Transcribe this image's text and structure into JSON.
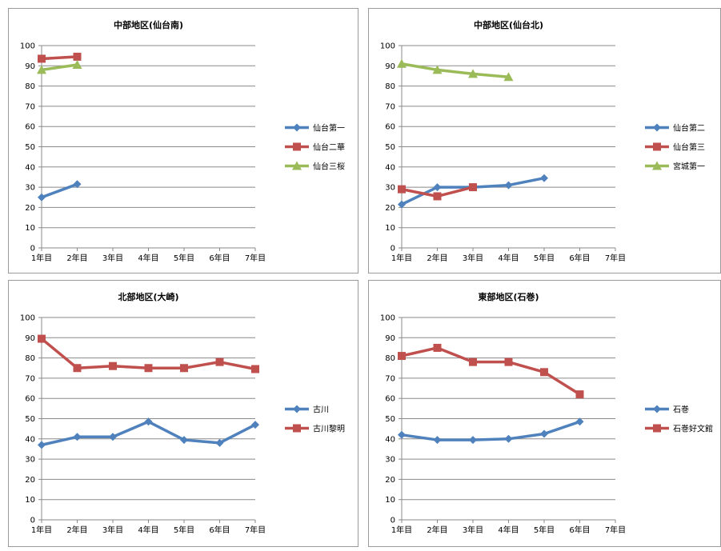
{
  "chart_data": [
    {
      "type": "line",
      "title": "中部地区(仙台南)",
      "categories": [
        "1年目",
        "2年目",
        "3年目",
        "4年目",
        "5年目",
        "6年目",
        "7年目"
      ],
      "ylim": [
        0,
        100
      ],
      "yticks": [
        0,
        10,
        20,
        30,
        40,
        50,
        60,
        70,
        80,
        90,
        100
      ],
      "grid": true,
      "legend": "right",
      "series": [
        {
          "name": "仙台第一",
          "color": "#4F81BD",
          "marker": "diamond",
          "values": [
            25,
            31.5,
            null,
            null,
            null,
            null,
            null
          ]
        },
        {
          "name": "仙台二華",
          "color": "#C0504D",
          "marker": "square",
          "values": [
            93.5,
            94.5,
            null,
            null,
            null,
            null,
            null
          ]
        },
        {
          "name": "仙台三桜",
          "color": "#9BBB59",
          "marker": "triangle",
          "values": [
            88,
            90.5,
            null,
            null,
            null,
            null,
            null
          ]
        }
      ]
    },
    {
      "type": "line",
      "title": "中部地区(仙台北)",
      "categories": [
        "1年目",
        "2年目",
        "3年目",
        "4年目",
        "5年目",
        "6年目",
        "7年目"
      ],
      "ylim": [
        0,
        100
      ],
      "yticks": [
        0,
        10,
        20,
        30,
        40,
        50,
        60,
        70,
        80,
        90,
        100
      ],
      "grid": true,
      "legend": "right",
      "series": [
        {
          "name": "仙台第二",
          "color": "#4F81BD",
          "marker": "diamond",
          "values": [
            21.5,
            30,
            30,
            31,
            34.5,
            null,
            null
          ]
        },
        {
          "name": "仙台第三",
          "color": "#C0504D",
          "marker": "square",
          "values": [
            29,
            25.5,
            30,
            null,
            null,
            null,
            null
          ]
        },
        {
          "name": "宮城第一",
          "color": "#9BBB59",
          "marker": "triangle",
          "values": [
            91,
            88,
            86,
            84.5,
            null,
            null,
            null
          ]
        }
      ]
    },
    {
      "type": "line",
      "title": "北部地区(大崎)",
      "categories": [
        "1年目",
        "2年目",
        "3年目",
        "4年目",
        "5年目",
        "6年目",
        "7年目"
      ],
      "ylim": [
        0,
        100
      ],
      "yticks": [
        0,
        10,
        20,
        30,
        40,
        50,
        60,
        70,
        80,
        90,
        100
      ],
      "grid": true,
      "legend": "right",
      "series": [
        {
          "name": "古川",
          "color": "#4F81BD",
          "marker": "diamond",
          "values": [
            37,
            41,
            41,
            48.5,
            39.5,
            38,
            47
          ]
        },
        {
          "name": "古川黎明",
          "color": "#C0504D",
          "marker": "square",
          "values": [
            89.5,
            75,
            76,
            75,
            75,
            78,
            74.5
          ]
        }
      ]
    },
    {
      "type": "line",
      "title": "東部地区(石巻)",
      "categories": [
        "1年目",
        "2年目",
        "3年目",
        "4年目",
        "5年目",
        "6年目",
        "7年目"
      ],
      "ylim": [
        0,
        100
      ],
      "yticks": [
        0,
        10,
        20,
        30,
        40,
        50,
        60,
        70,
        80,
        90,
        100
      ],
      "grid": true,
      "legend": "right",
      "series": [
        {
          "name": "石巻",
          "color": "#4F81BD",
          "marker": "diamond",
          "values": [
            42,
            39.5,
            39.5,
            40,
            42.5,
            48.5,
            null
          ]
        },
        {
          "name": "石巻好文館",
          "color": "#C0504D",
          "marker": "square",
          "values": [
            81,
            85,
            78,
            78,
            73,
            62,
            null
          ]
        }
      ]
    }
  ]
}
